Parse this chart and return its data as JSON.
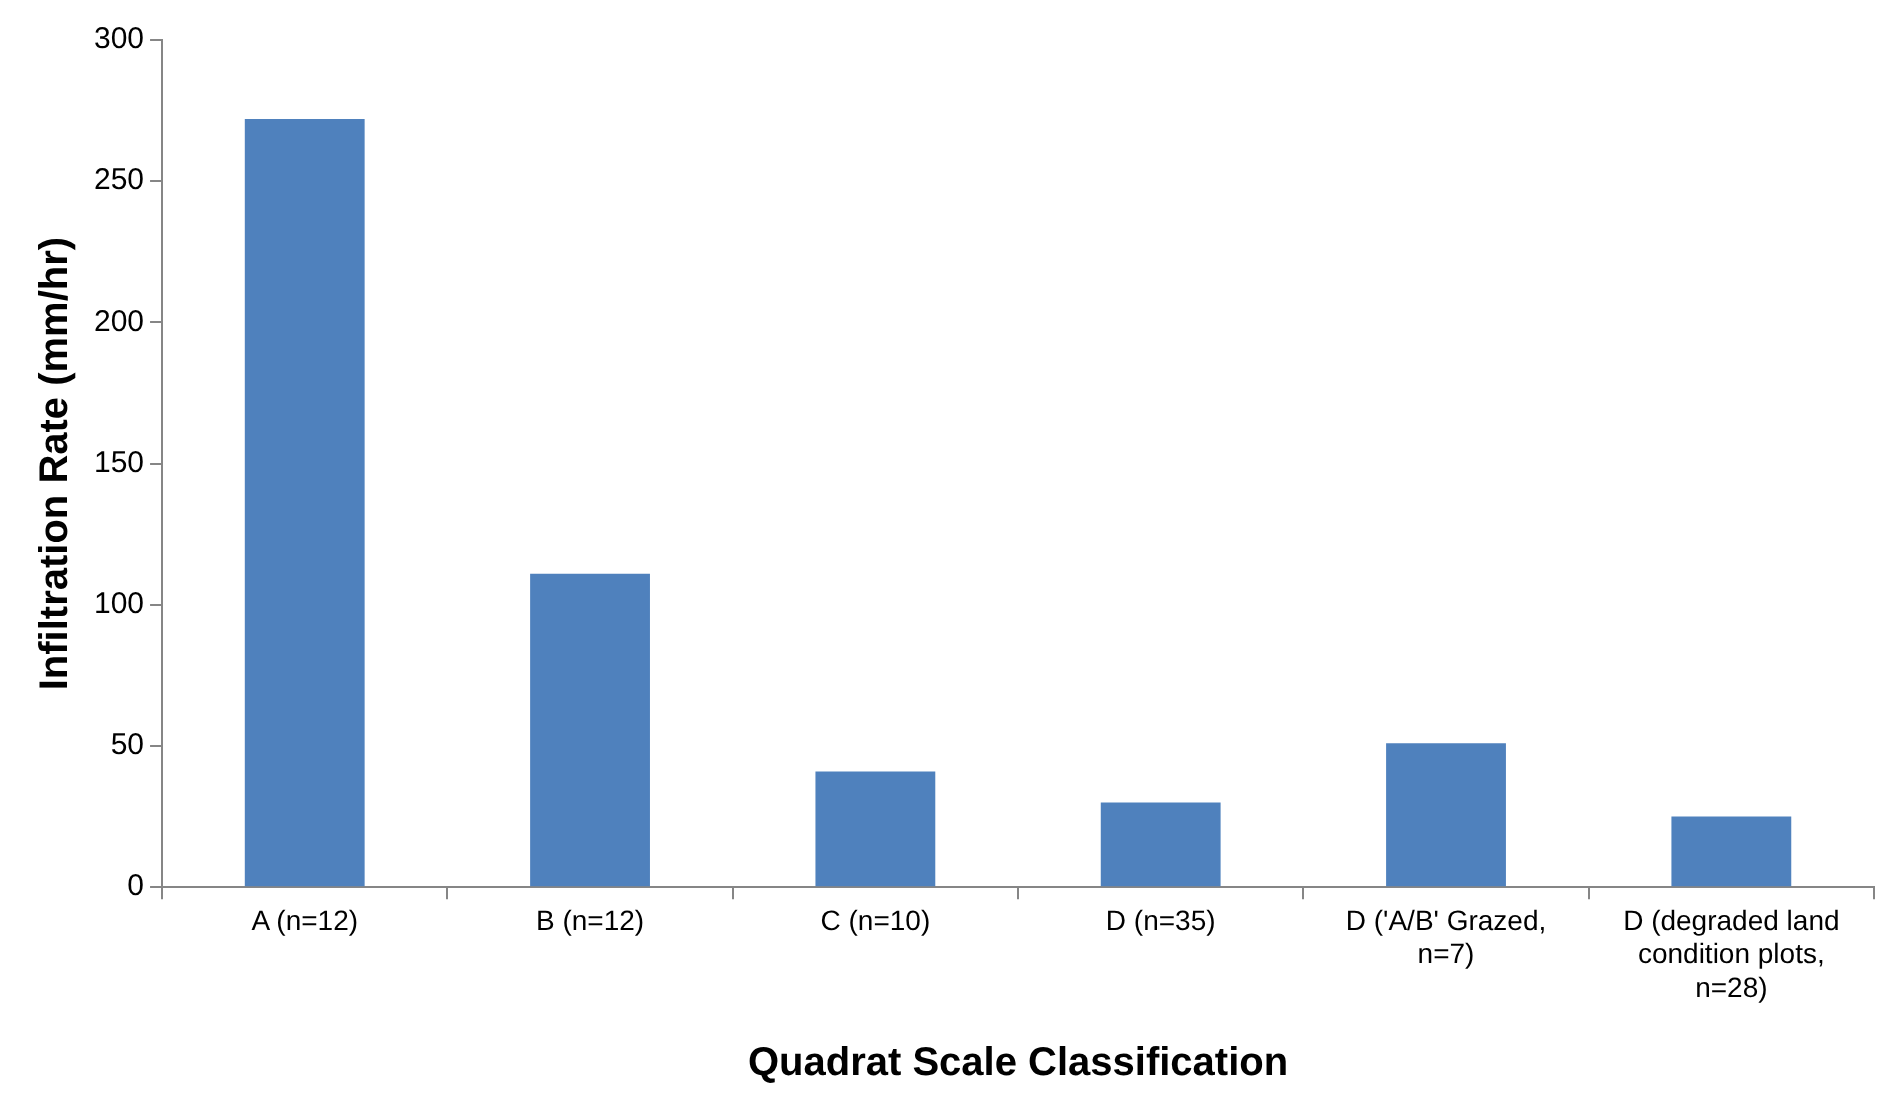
{
  "chart_data": {
    "type": "bar",
    "xlabel": "Quadrat Scale Classification",
    "ylabel": "Infiltration Rate (mm/hr)",
    "categories": [
      "A (n=12)",
      "B (n=12)",
      "C (n=10)",
      "D (n=35)",
      "D ('A/B' Grazed, n=7)",
      "D (degraded land condition plots, n=28)"
    ],
    "values": [
      272,
      111,
      41,
      30,
      51,
      25
    ],
    "color": "#4f81bd",
    "ylim": [
      0,
      300
    ],
    "yticks": [
      0,
      50,
      100,
      150,
      200,
      250,
      300
    ],
    "grid": false,
    "legend": false
  }
}
